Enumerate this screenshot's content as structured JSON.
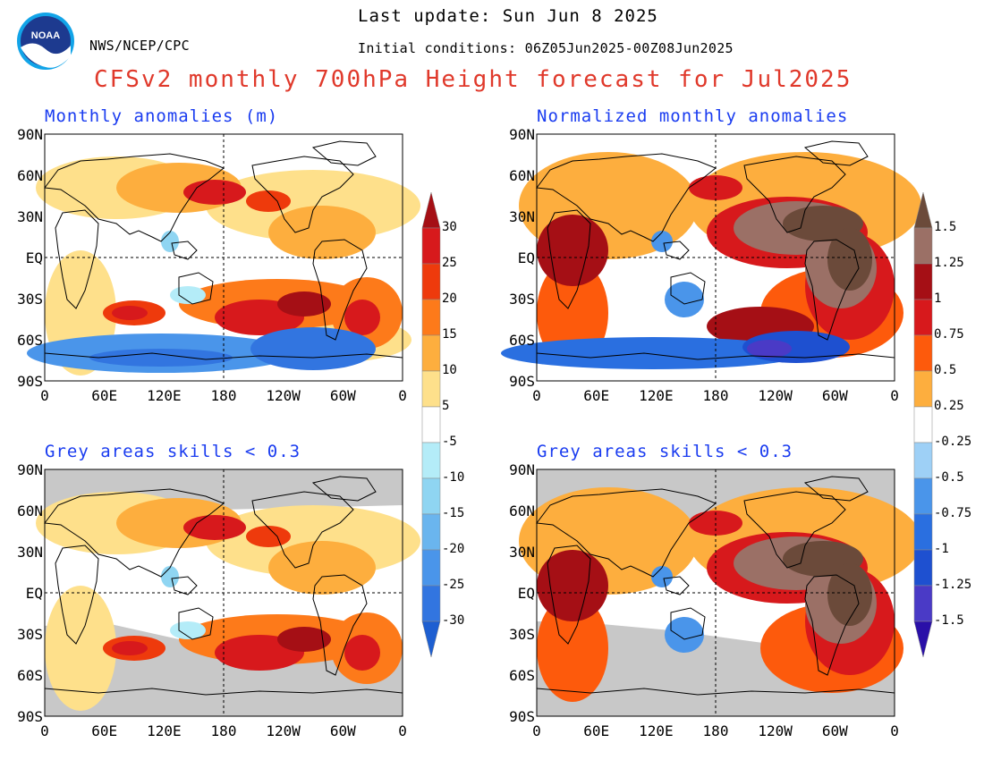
{
  "header": {
    "agency": "NWS/NCEP/CPC",
    "last_update": "Last update: Sun Jun 8 2025",
    "initial_conditions": "Initial conditions: 06Z05Jun2025-00Z08Jun2025",
    "title": "CFSv2 monthly 700hPa Height forecast for Jul2025",
    "logo_text": "NOAA"
  },
  "panels": [
    {
      "title": "Monthly anomalies (m)",
      "type": "anomaly_m",
      "grey_masked": false
    },
    {
      "title": "Normalized monthly anomalies",
      "type": "normalized",
      "grey_masked": false
    },
    {
      "title": "Grey areas skills < 0.3",
      "type": "anomaly_m",
      "grey_masked": true
    },
    {
      "title": "Grey areas skills < 0.3",
      "type": "normalized",
      "grey_masked": true
    }
  ],
  "axes": {
    "lat_labels": [
      "90N",
      "60N",
      "30N",
      "EQ",
      "30S",
      "60S",
      "90S"
    ],
    "lon_labels": [
      "0",
      "60E",
      "120E",
      "180",
      "120W",
      "60W",
      "0"
    ]
  },
  "colorbar_m": {
    "labels_pos": [
      "30",
      "25",
      "20",
      "15",
      "10",
      "5"
    ],
    "labels_neg": [
      "-5",
      "-10",
      "-15",
      "-20",
      "-25",
      "-30"
    ],
    "colors_pos": [
      "#a50f15",
      "#d7191c",
      "#ee3a0c",
      "#fd7a1a",
      "#fdae3e",
      "#fee08b"
    ],
    "colors_neg": [
      "#b4ecf8",
      "#8fd5f2",
      "#6ab5ee",
      "#4a95ea",
      "#3275e0",
      "#1e5fd1"
    ]
  },
  "colorbar_n": {
    "labels_pos": [
      "1.5",
      "1.25",
      "1",
      "0.75",
      "0.5",
      "0.25"
    ],
    "labels_neg": [
      "-0.25",
      "-0.5",
      "-0.75",
      "-1",
      "-1.25",
      "-1.5"
    ],
    "colors_pos": [
      "#6b4a3a",
      "#9b7066",
      "#a50f15",
      "#d7191c",
      "#fd5a0c",
      "#fdae3e"
    ],
    "colors_neg": [
      "#9ed0f6",
      "#4a95ea",
      "#2a6fe0",
      "#1e50d0",
      "#4a3ac6",
      "#2a10a8"
    ]
  },
  "colors": {
    "title_red": "#e0392b",
    "panel_title_blue": "#1a3cf0",
    "mask_grey": "#c8c8c8"
  }
}
